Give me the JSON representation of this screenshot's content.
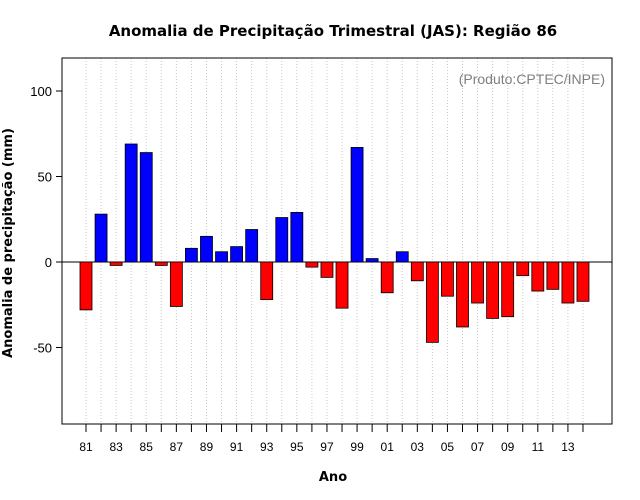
{
  "chart_data": {
    "type": "bar",
    "title": "Anomalia de Precipitação Trimestral (JAS): Região 86",
    "xlabel": "Ano",
    "ylabel": "Anomalia de precipitação (mm)",
    "annotation": "(Produto:CPTEC/INPE)",
    "ylim": [
      -95,
      120
    ],
    "yticks": [
      -50,
      0,
      50,
      100
    ],
    "grid": "vertical dotted",
    "categories": [
      "81",
      "82",
      "83",
      "84",
      "85",
      "86",
      "87",
      "88",
      "89",
      "90",
      "91",
      "92",
      "93",
      "94",
      "95",
      "96",
      "97",
      "98",
      "99",
      "00",
      "01",
      "02",
      "03",
      "04",
      "05",
      "06",
      "07",
      "08",
      "09",
      "10",
      "11",
      "12",
      "13",
      "14"
    ],
    "xtick_labels": [
      "81",
      "83",
      "85",
      "87",
      "89",
      "91",
      "93",
      "95",
      "97",
      "99",
      "01",
      "03",
      "05",
      "07",
      "09",
      "11",
      "13"
    ],
    "values": [
      -28,
      28,
      -2,
      69,
      64,
      -2,
      -26,
      8,
      15,
      6,
      9,
      19,
      -22,
      26,
      29,
      -3,
      -9,
      -27,
      67,
      2,
      -18,
      6,
      -11,
      -47,
      -20,
      -38,
      -24,
      -33,
      -32,
      -8,
      -17,
      -16,
      -24,
      -23
    ],
    "colors": {
      "positive": "#0000ff",
      "negative": "#ff0000"
    }
  }
}
